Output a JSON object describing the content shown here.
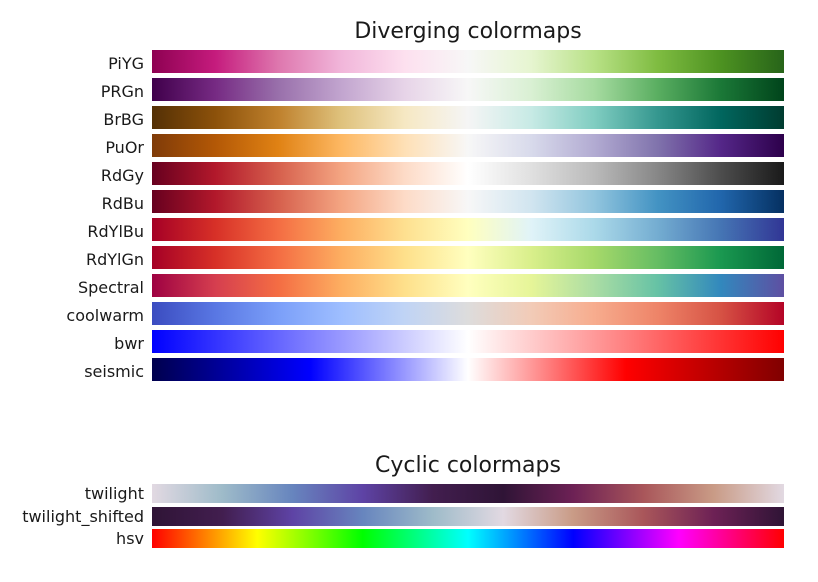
{
  "sections": [
    {
      "title": "Diverging colormaps",
      "colormaps": [
        {
          "name": "PiYG",
          "colors": [
            "#8e0152",
            "#c51b7d",
            "#de77ae",
            "#f1b6da",
            "#fde0ef",
            "#f7f7f7",
            "#e6f5d0",
            "#b8e186",
            "#7fbc41",
            "#4d9221",
            "#276419"
          ]
        },
        {
          "name": "PRGn",
          "colors": [
            "#40004b",
            "#762a83",
            "#9970ab",
            "#c2a5cf",
            "#e7d4e8",
            "#f7f7f7",
            "#d9f0d3",
            "#a6dba0",
            "#5aae61",
            "#1b7837",
            "#00441b"
          ]
        },
        {
          "name": "BrBG",
          "colors": [
            "#543005",
            "#8c510a",
            "#bf812d",
            "#dfc27d",
            "#f6e8c3",
            "#f5f5f5",
            "#c7eae5",
            "#80cdc1",
            "#35978f",
            "#01665e",
            "#003c30"
          ]
        },
        {
          "name": "PuOr",
          "colors": [
            "#7f3b08",
            "#b35806",
            "#e08214",
            "#fdb863",
            "#fee0b6",
            "#f7f7f7",
            "#d8daeb",
            "#b2abd2",
            "#8073ac",
            "#542788",
            "#2d004b"
          ]
        },
        {
          "name": "RdGy",
          "colors": [
            "#67001f",
            "#b2182b",
            "#d6604d",
            "#f4a582",
            "#fddbc7",
            "#ffffff",
            "#e0e0e0",
            "#bababa",
            "#878787",
            "#4d4d4d",
            "#1a1a1a"
          ]
        },
        {
          "name": "RdBu",
          "colors": [
            "#67001f",
            "#b2182b",
            "#d6604d",
            "#f4a582",
            "#fddbc7",
            "#f7f7f7",
            "#d1e5f0",
            "#92c5de",
            "#4393c3",
            "#2166ac",
            "#053061"
          ]
        },
        {
          "name": "RdYlBu",
          "colors": [
            "#a50026",
            "#d73027",
            "#f46d43",
            "#fdae61",
            "#fee090",
            "#ffffbf",
            "#e0f3f8",
            "#abd9e9",
            "#74add1",
            "#4575b4",
            "#313695"
          ]
        },
        {
          "name": "RdYlGn",
          "colors": [
            "#a50026",
            "#d73027",
            "#f46d43",
            "#fdae61",
            "#fee08b",
            "#ffffbf",
            "#d9ef8b",
            "#a6d96a",
            "#66bd63",
            "#1a9850",
            "#006837"
          ]
        },
        {
          "name": "Spectral",
          "colors": [
            "#9e0142",
            "#d53e4f",
            "#f46d43",
            "#fdae61",
            "#fee08b",
            "#ffffbf",
            "#e6f598",
            "#abdda4",
            "#66c2a5",
            "#3288bd",
            "#5e4fa2"
          ]
        },
        {
          "name": "coolwarm",
          "colors": [
            "#3b4cc0",
            "#5977e3",
            "#7b9ff9",
            "#9ebeff",
            "#c0d4f5",
            "#dddcdc",
            "#f2cbb7",
            "#f7ac8e",
            "#ee8468",
            "#d65244",
            "#b40426"
          ]
        },
        {
          "name": "bwr",
          "colors": [
            "#0000ff",
            "#ffffff",
            "#ff0000"
          ]
        },
        {
          "name": "seismic",
          "colors": [
            "#00004d",
            "#0000ff",
            "#ffffff",
            "#ff0000",
            "#800000"
          ]
        }
      ]
    },
    {
      "title": "Cyclic colormaps",
      "colormaps": [
        {
          "name": "twilight",
          "colors": [
            "#e2d9e2",
            "#9ebbc9",
            "#6785be",
            "#5e43a5",
            "#421e4f",
            "#2f1436",
            "#6d2155",
            "#a9565a",
            "#c99b86",
            "#e2d9e2"
          ]
        },
        {
          "name": "twilight_shifted",
          "colors": [
            "#2f1436",
            "#421e4f",
            "#5e43a5",
            "#6785be",
            "#9ebbc9",
            "#e2d9e2",
            "#c99b86",
            "#a9565a",
            "#6d2155",
            "#2f1436"
          ]
        },
        {
          "name": "hsv",
          "colors": [
            "#ff0000",
            "#ffff00",
            "#00ff00",
            "#00ffff",
            "#0000ff",
            "#ff00ff",
            "#ff0000"
          ]
        }
      ]
    }
  ]
}
